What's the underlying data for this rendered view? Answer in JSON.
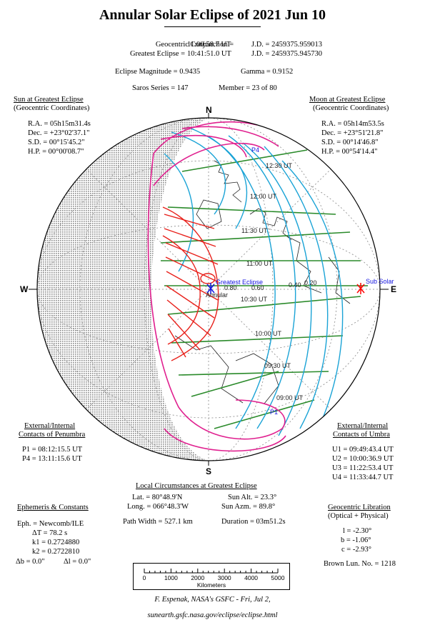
{
  "title": "Annular Solar Eclipse of  2021 Jun 10",
  "header": {
    "conj_label": "Geocentric Conjunction = ",
    "conj_time": "11:00:58.7 UT",
    "conj_jd": "J.D. =  2459375.959013",
    "ge_label": "Greatest Eclipse = ",
    "ge_time": "10:41:51.0 UT",
    "ge_jd": "J.D. =  2459375.945730",
    "magnitude": "Eclipse Magnitude = 0.9435",
    "gamma": "Gamma = 0.9152",
    "saros": "Saros Series = 147",
    "member": "Member = 23 of 80"
  },
  "sun": {
    "heading": "Sun at Greatest Eclipse",
    "sub": "(Geocentric Coordinates)",
    "ra": "R.A. =  05h15m31.4s",
    "dec": "Dec. = +23°02'37.1\"",
    "sd": "S.D. =  00°15'45.2\"",
    "hp": "H.P. =  00°00'08.7\""
  },
  "moon": {
    "heading": "Moon at Greatest Eclipse",
    "sub": "(Geocentric Coordinates)",
    "ra": "R.A. =  05h14m53.5s",
    "dec": "Dec. = +23°51'21.8\"",
    "sd": "S.D. =  00°14'46.8\"",
    "hp": "H.P. =  00°54'14.4\""
  },
  "map": {
    "north": "N",
    "south": "S",
    "west": "W",
    "east": "E",
    "greatest_eclipse_label": "Greatest Eclipse",
    "annular_label": "Annular",
    "sub_solar_label": "Sub Solar",
    "p1": "P1",
    "p4": "P4",
    "magnitude_labels": [
      "0.80",
      "0.60",
      "0.40",
      "0.20"
    ],
    "time_labels": [
      "12:30 UT",
      "12:00 UT",
      "11:30 UT",
      "11:00 UT",
      "10:30 UT",
      "10:00 UT",
      "09:30 UT",
      "09:00 UT"
    ],
    "colors": {
      "penumbra_limit": "#e0208f",
      "annular_path": "#e8201a",
      "time_lines": "#1aa3d6",
      "magnitude_lines": "#2a8a2a",
      "night": "#9a9a9a",
      "marker_sun": "#ff0000",
      "marker_ge": "#1414e0"
    }
  },
  "penumbra": {
    "heading1": "External/Internal",
    "heading2": "Contacts of Penumbra",
    "p1": "P1 = 08:12:15.5 UT",
    "p4": "P4 = 13:11:15.6 UT"
  },
  "umbra": {
    "heading1": "External/Internal",
    "heading2": "Contacts of Umbra",
    "u1": "U1 = 09:49:43.4 UT",
    "u2": "U2 = 10:00:36.9 UT",
    "u3": "U3 = 11:22:53.4 UT",
    "u4": "U4 = 11:33:44.7 UT"
  },
  "local": {
    "heading": "Local Circumstances at Greatest Eclipse",
    "lat": "Lat. =  80°48.9'N",
    "long": "Long. = 066°48.3'W",
    "sun_alt": "Sun Alt. =   23.3°",
    "sun_azm": "Sun Azm. =   89.8°",
    "path_width": "Path Width = 527.1 km",
    "duration": "Duration =  03m51.2s"
  },
  "ephemeris": {
    "heading": "Ephemeris & Constants",
    "eph": "Eph. = Newcomb/ILE",
    "dt": "ΔT =     78.2 s",
    "k1": "k1 = 0.2724880",
    "k2": "k2 = 0.2722810",
    "db": "Δb =   0.0\"",
    "dl": "Δl =   0.0\""
  },
  "libration": {
    "heading": "Geocentric Libration",
    "sub": "(Optical + Physical)",
    "l": "l =   -2.30°",
    "b": "b =   -1.06°",
    "c": "c =   -2.93°",
    "brown": "Brown Lun. No. = 1218"
  },
  "scale": {
    "ticks": [
      "0",
      "1000",
      "2000",
      "3000",
      "4000",
      "5000"
    ],
    "unit": "Kilometers"
  },
  "credit": {
    "line1": "F. Espenak, NASA's GSFC - Fri, Jul 2,",
    "line2": "sunearth.gsfc.nasa.gov/eclipse/eclipse.html"
  }
}
